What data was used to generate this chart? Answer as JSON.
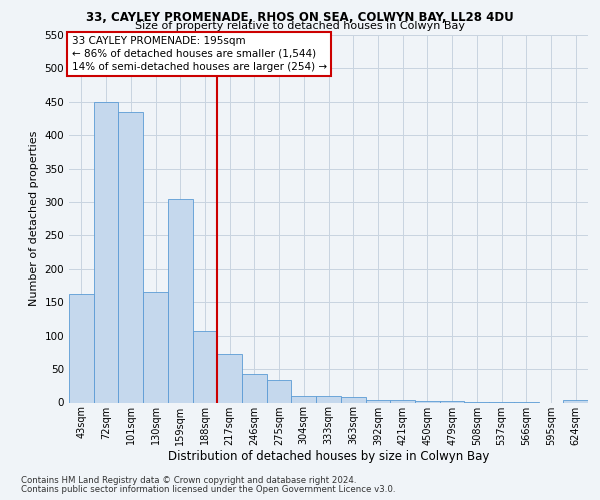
{
  "title_line1": "33, CAYLEY PROMENADE, RHOS ON SEA, COLWYN BAY, LL28 4DU",
  "title_line2": "Size of property relative to detached houses in Colwyn Bay",
  "xlabel": "Distribution of detached houses by size in Colwyn Bay",
  "ylabel": "Number of detached properties",
  "categories": [
    "43sqm",
    "72sqm",
    "101sqm",
    "130sqm",
    "159sqm",
    "188sqm",
    "217sqm",
    "246sqm",
    "275sqm",
    "304sqm",
    "333sqm",
    "363sqm",
    "392sqm",
    "421sqm",
    "450sqm",
    "479sqm",
    "508sqm",
    "537sqm",
    "566sqm",
    "595sqm",
    "624sqm"
  ],
  "values": [
    163,
    450,
    435,
    165,
    305,
    107,
    73,
    43,
    33,
    10,
    10,
    8,
    4,
    3,
    2,
    2,
    1,
    1,
    1,
    0,
    3
  ],
  "bar_color": "#c5d8ed",
  "bar_edge_color": "#5b9bd5",
  "vline_index": 5,
  "vline_color": "#cc0000",
  "annotation_text": "33 CAYLEY PROMENADE: 195sqm\n← 86% of detached houses are smaller (1,544)\n14% of semi-detached houses are larger (254) →",
  "annotation_box_color": "#cc0000",
  "footer_line1": "Contains HM Land Registry data © Crown copyright and database right 2024.",
  "footer_line2": "Contains public sector information licensed under the Open Government Licence v3.0.",
  "ylim": [
    0,
    550
  ],
  "yticks": [
    0,
    50,
    100,
    150,
    200,
    250,
    300,
    350,
    400,
    450,
    500,
    550
  ],
  "bg_color": "#f0f4f8",
  "grid_color": "#c8d4e0",
  "title1_fontsize": 8.5,
  "title2_fontsize": 8.0,
  "ylabel_fontsize": 8.0,
  "xlabel_fontsize": 8.5
}
